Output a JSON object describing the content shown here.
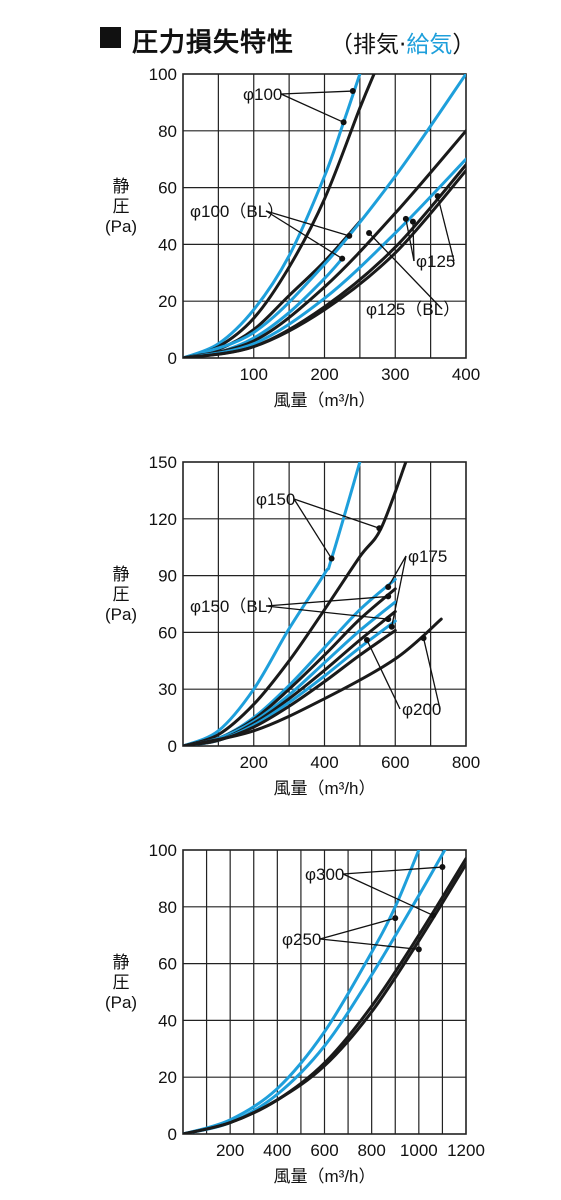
{
  "header": {
    "title": "圧力損失特性",
    "subtitle_open": "（排気·",
    "subtitle_blue": "給気",
    "subtitle_close": "）"
  },
  "colors": {
    "blue": "#1e9fdb",
    "black": "#1a1a1a",
    "grid": "#222222"
  },
  "chart_data": [
    {
      "type": "line",
      "xlabel": "風量（m³/h）",
      "ylabel_lines": [
        "静",
        "圧",
        "(Pa)"
      ],
      "xlim": [
        0,
        400
      ],
      "ylim": [
        0,
        100
      ],
      "xticks": [
        100,
        200,
        300,
        400
      ],
      "yticks": [
        0,
        20,
        40,
        60,
        80,
        100
      ],
      "series": [
        {
          "color": "blue",
          "x": [
            0,
            50,
            100,
            150,
            200,
            227,
            250
          ],
          "y": [
            0,
            5,
            17,
            36,
            64,
            83,
            100
          ]
        },
        {
          "color": "black",
          "x": [
            0,
            50,
            100,
            150,
            200,
            250,
            270
          ],
          "y": [
            0,
            4,
            14,
            32,
            56,
            88,
            100
          ]
        },
        {
          "color": "black",
          "x": [
            0,
            50,
            100,
            150,
            200,
            250
          ],
          "y": [
            0,
            3,
            10,
            22,
            34,
            48
          ]
        },
        {
          "color": "blue",
          "x": [
            0,
            50,
            100,
            150,
            200,
            225
          ],
          "y": [
            0,
            2,
            7,
            16,
            28,
            35
          ]
        },
        {
          "color": "blue",
          "x": [
            0,
            100,
            200,
            300,
            400
          ],
          "y": [
            0,
            9,
            33,
            64,
            100
          ]
        },
        {
          "color": "black",
          "x": [
            0,
            100,
            200,
            300,
            400
          ],
          "y": [
            0,
            6,
            25,
            51,
            80
          ]
        },
        {
          "color": "blue",
          "x": [
            0,
            100,
            200,
            300,
            400
          ],
          "y": [
            0,
            5,
            21,
            44,
            70
          ]
        },
        {
          "color": "black",
          "x": [
            0,
            100,
            200,
            300,
            400
          ],
          "y": [
            0,
            4,
            18,
            39,
            68
          ]
        },
        {
          "color": "black",
          "x": [
            0,
            100,
            200,
            300,
            400
          ],
          "y": [
            0,
            4,
            17,
            37,
            66
          ]
        }
      ],
      "annotations": [
        {
          "label": "φ100",
          "points": [
            [
              227,
              83
            ],
            [
              240,
              94
            ]
          ]
        },
        {
          "label": "φ100（BL）",
          "points": [
            [
              235,
              43
            ],
            [
              225,
              35
            ]
          ]
        },
        {
          "label": "φ125",
          "points": [
            [
              315,
              49
            ],
            [
              325,
              48
            ],
            [
              360,
              57
            ]
          ]
        },
        {
          "label": "φ125（BL）",
          "points": [
            [
              263,
              44
            ]
          ]
        }
      ]
    },
    {
      "type": "line",
      "xlabel": "風量（m³/h）",
      "ylabel_lines": [
        "静",
        "圧",
        "(Pa)"
      ],
      "xlim": [
        0,
        800
      ],
      "ylim": [
        0,
        150
      ],
      "xticks": [
        200,
        400,
        600,
        800
      ],
      "yticks": [
        0,
        30,
        60,
        90,
        120,
        150
      ],
      "series": [
        {
          "color": "blue",
          "x": [
            0,
            100,
            200,
            300,
            400,
            420,
            500
          ],
          "y": [
            0,
            8,
            30,
            62,
            91,
            99,
            150
          ]
        },
        {
          "color": "black",
          "x": [
            0,
            100,
            200,
            300,
            400,
            500,
            560,
            630
          ],
          "y": [
            0,
            6,
            22,
            45,
            72,
            100,
            115,
            150
          ]
        },
        {
          "color": "blue",
          "x": [
            0,
            100,
            200,
            300,
            400,
            500,
            600
          ],
          "y": [
            0,
            4,
            15,
            32,
            52,
            72,
            88
          ]
        },
        {
          "color": "black",
          "x": [
            0,
            100,
            200,
            300,
            400,
            500,
            600
          ],
          "y": [
            0,
            4,
            14,
            30,
            48,
            67,
            83
          ]
        },
        {
          "color": "blue",
          "x": [
            0,
            100,
            200,
            300,
            400,
            500,
            600
          ],
          "y": [
            0,
            4,
            13,
            27,
            44,
            61,
            76
          ]
        },
        {
          "color": "black",
          "x": [
            0,
            100,
            200,
            300,
            400,
            500,
            600
          ],
          "y": [
            0,
            3,
            12,
            25,
            40,
            56,
            71
          ]
        },
        {
          "color": "blue",
          "x": [
            0,
            100,
            200,
            300,
            400,
            500,
            600
          ],
          "y": [
            0,
            3,
            11,
            23,
            37,
            52,
            66
          ]
        },
        {
          "color": "black",
          "x": [
            0,
            100,
            200,
            300,
            400,
            500,
            600
          ],
          "y": [
            0,
            3,
            10,
            21,
            34,
            48,
            61
          ]
        },
        {
          "color": "black",
          "x": [
            0,
            200,
            400,
            600,
            730
          ],
          "y": [
            0,
            8,
            25,
            46,
            67
          ]
        }
      ],
      "annotations": [
        {
          "label": "φ150",
          "points": [
            [
              420,
              99
            ],
            [
              555,
              115
            ]
          ]
        },
        {
          "label": "φ150（BL）",
          "points": [
            [
              580,
              67
            ],
            [
              580,
              79
            ]
          ]
        },
        {
          "label": "φ175",
          "points": [
            [
              580,
              84
            ],
            [
              590,
              63
            ]
          ]
        },
        {
          "label": "φ200",
          "points": [
            [
              520,
              56
            ],
            [
              680,
              57
            ]
          ]
        }
      ]
    },
    {
      "type": "line",
      "xlabel": "風量（m³/h）",
      "ylabel_lines": [
        "静",
        "圧",
        "(Pa)"
      ],
      "xlim": [
        0,
        1200
      ],
      "ylim": [
        0,
        100
      ],
      "xticks": [
        200,
        400,
        600,
        800,
        1000,
        1200
      ],
      "yticks": [
        0,
        20,
        40,
        60,
        80,
        100
      ],
      "series": [
        {
          "color": "blue",
          "x": [
            0,
            200,
            400,
            600,
            800,
            900,
            1000
          ],
          "y": [
            0,
            5,
            16,
            36,
            64,
            80,
            100
          ]
        },
        {
          "color": "blue",
          "x": [
            0,
            200,
            400,
            600,
            800,
            1000,
            1110
          ],
          "y": [
            0,
            4,
            14,
            31,
            56,
            84,
            100
          ]
        },
        {
          "color": "black",
          "x": [
            0,
            200,
            400,
            600,
            800,
            1000,
            1200
          ],
          "y": [
            0,
            4,
            12,
            25,
            45,
            70,
            97
          ]
        },
        {
          "color": "black",
          "x": [
            0,
            200,
            400,
            600,
            800,
            1000,
            1200
          ],
          "y": [
            0,
            4,
            12,
            24,
            43,
            68,
            95
          ]
        }
      ],
      "annotations": [
        {
          "label": "φ300",
          "points": [
            [
              1100,
              94
            ],
            [
              1060,
              77
            ]
          ]
        },
        {
          "label": "φ250",
          "points": [
            [
              900,
              76
            ],
            [
              1000,
              65
            ]
          ]
        }
      ]
    }
  ]
}
